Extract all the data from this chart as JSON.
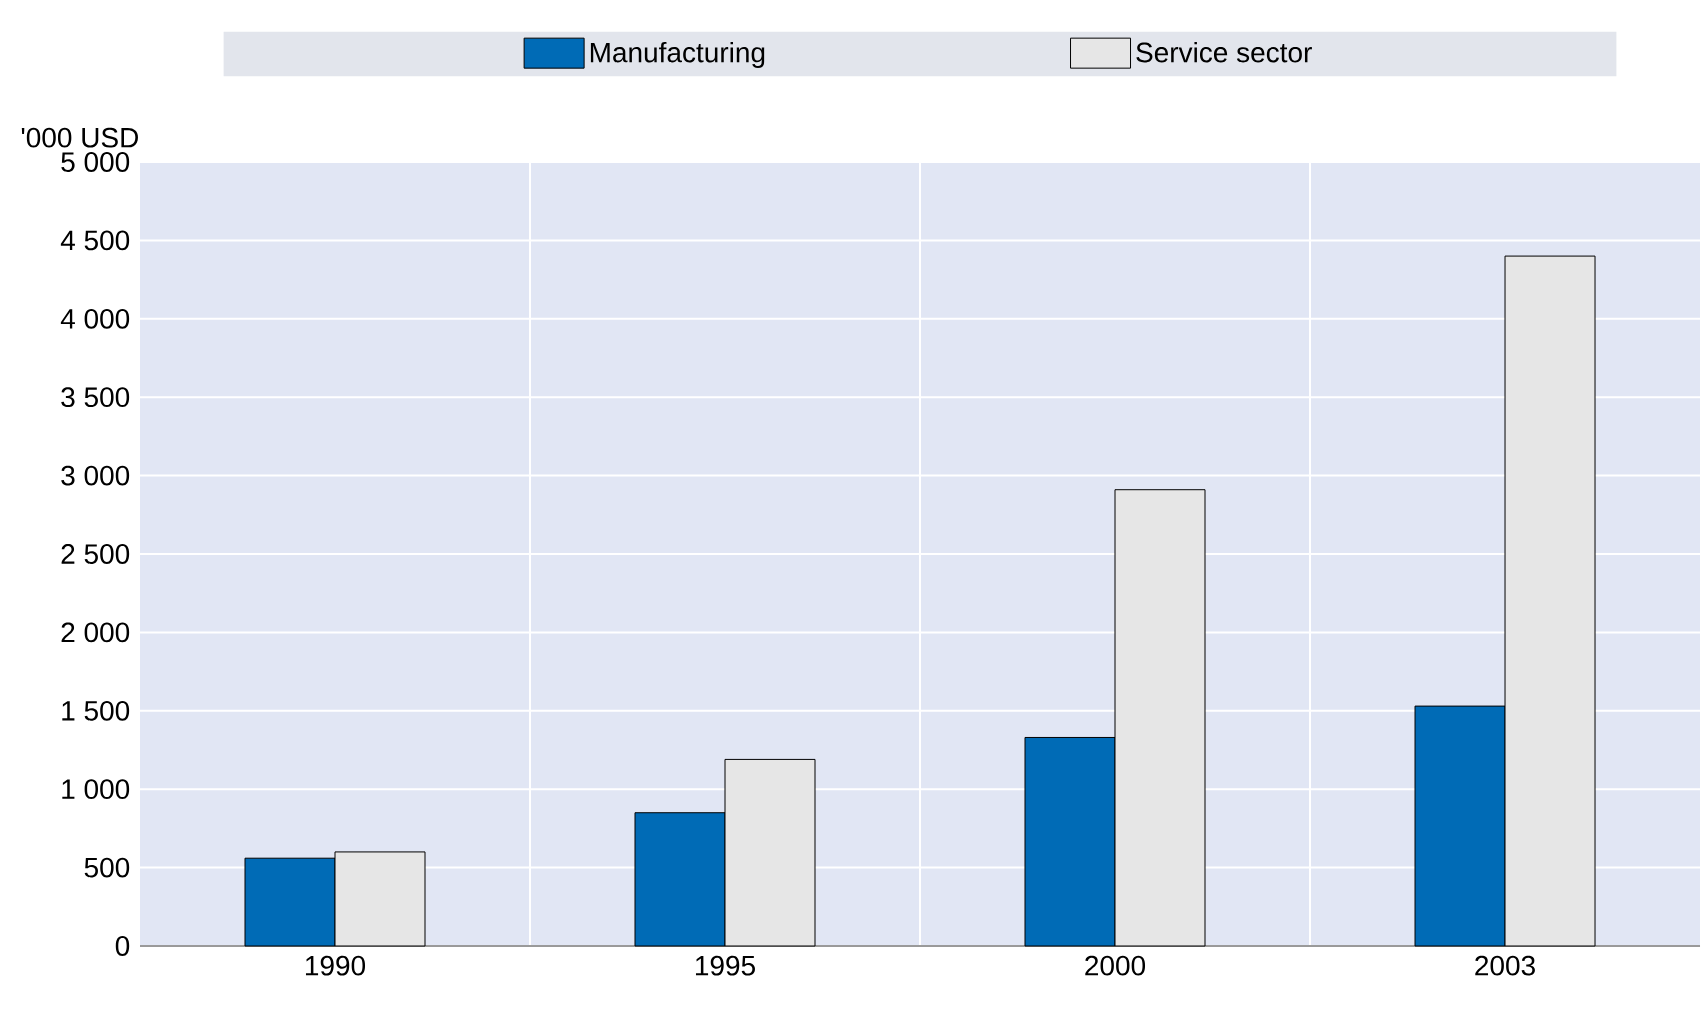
{
  "chart_data": {
    "type": "bar",
    "ylabel": "'000 USD",
    "categories": [
      "1990",
      "1995",
      "2000",
      "2003"
    ],
    "series": [
      {
        "name": "Manufacturing",
        "color": "#006bb6",
        "values": [
          560,
          850,
          1330,
          1530
        ]
      },
      {
        "name": "Service sector",
        "color": "#e6e6e6",
        "values": [
          600,
          1190,
          2910,
          4400
        ]
      }
    ],
    "ylim": [
      0,
      5000
    ],
    "yticks": [
      0,
      500,
      {
        "value": 1000,
        "label": "1 000"
      },
      {
        "value": 1500,
        "label": "1 500"
      },
      {
        "value": 2000,
        "label": "2 000"
      },
      {
        "value": 2500,
        "label": "2 500"
      },
      {
        "value": 3000,
        "label": "3 000"
      },
      {
        "value": 3500,
        "label": "3 500"
      },
      {
        "value": 4000,
        "label": "4 000"
      },
      {
        "value": 4500,
        "label": "4 500"
      },
      {
        "value": 5000,
        "label": "5 000"
      }
    ],
    "grid": true,
    "legend": "top"
  }
}
